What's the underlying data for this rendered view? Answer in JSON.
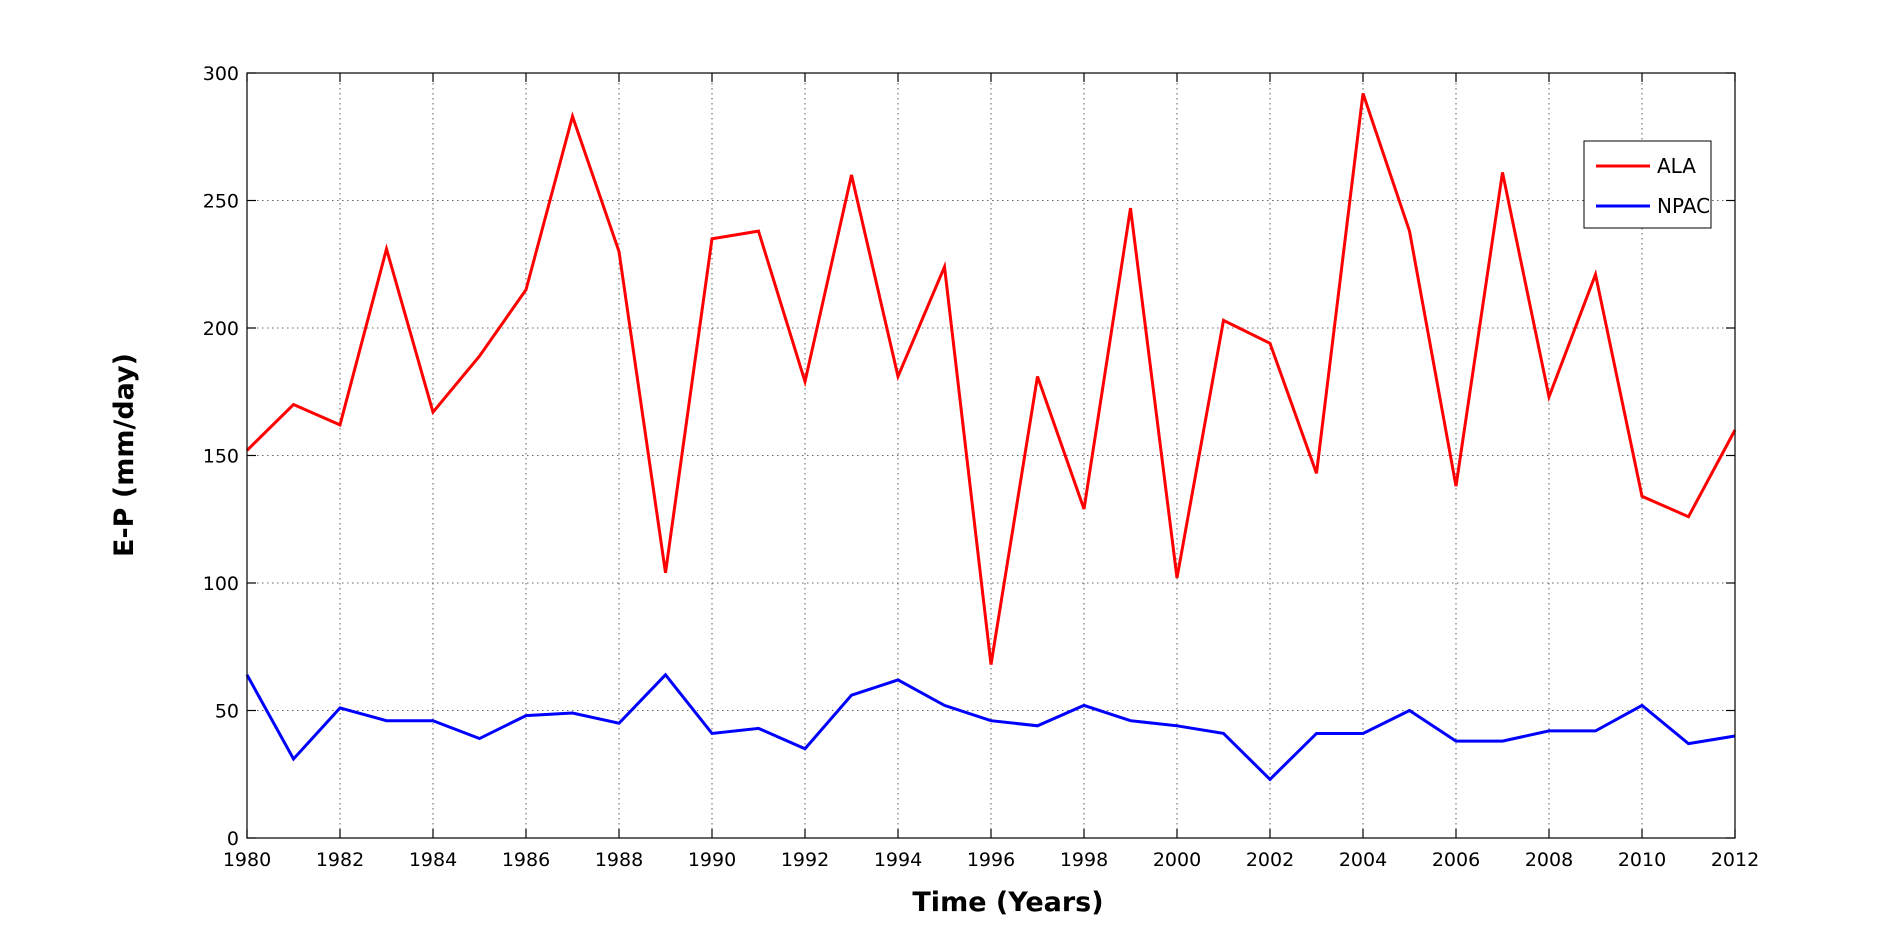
{
  "chart_data": {
    "type": "line",
    "title": "",
    "xlabel": "Time (Years)",
    "ylabel": "E-P (mm/day)",
    "xlim": [
      1980,
      2012
    ],
    "ylim": [
      0,
      300
    ],
    "xticks": [
      1980,
      1982,
      1984,
      1986,
      1988,
      1990,
      1992,
      1994,
      1996,
      1998,
      2000,
      2002,
      2004,
      2006,
      2008,
      2010,
      2012
    ],
    "yticks": [
      0,
      50,
      100,
      150,
      200,
      250,
      300
    ],
    "grid": true,
    "legend_position": "top-right",
    "x": [
      1980,
      1981,
      1982,
      1983,
      1984,
      1985,
      1986,
      1987,
      1988,
      1989,
      1990,
      1991,
      1992,
      1993,
      1994,
      1995,
      1996,
      1997,
      1998,
      1999,
      2000,
      2001,
      2002,
      2003,
      2004,
      2005,
      2006,
      2007,
      2008,
      2009,
      2010,
      2011,
      2012
    ],
    "series": [
      {
        "name": "ALA",
        "color": "#ff0000",
        "values": [
          152,
          170,
          162,
          231,
          167,
          189,
          215,
          283,
          230,
          104,
          235,
          238,
          179,
          260,
          181,
          224,
          68,
          181,
          129,
          247,
          102,
          203,
          194,
          143,
          292,
          238,
          138,
          261,
          173,
          221,
          134,
          126,
          160
        ]
      },
      {
        "name": "NPAC",
        "color": "#0000ff",
        "values": [
          64,
          31,
          51,
          46,
          46,
          39,
          48,
          49,
          45,
          64,
          41,
          43,
          35,
          56,
          62,
          52,
          46,
          44,
          52,
          46,
          44,
          41,
          23,
          41,
          41,
          50,
          38,
          38,
          42,
          42,
          52,
          37,
          40
        ]
      }
    ]
  }
}
